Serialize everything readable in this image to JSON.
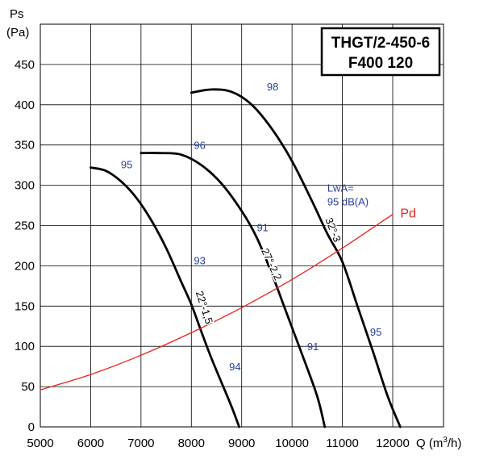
{
  "chart_data": {
    "type": "line",
    "title_lines": [
      "THGT/2-450-6",
      "F400 120"
    ],
    "ylabel_lines": [
      "Ps",
      "(Pa)"
    ],
    "xlabel": "Q (m³/h)",
    "xlim": [
      5000,
      12000
    ],
    "ylim": [
      0,
      500
    ],
    "x_ticks": [
      "5000",
      "6000",
      "7000",
      "8000",
      "9000",
      "10000",
      "11000",
      "12000"
    ],
    "y_ticks": [
      "0",
      "50",
      "100",
      "150",
      "200",
      "250",
      "300",
      "350",
      "400",
      "450"
    ],
    "grid": true,
    "colors": {
      "curve": "#000000",
      "pd": "#e8231d",
      "annotation": "#2a3f9a"
    },
    "series": [
      {
        "label": "22°-1,5",
        "points": [
          [
            6000,
            322
          ],
          [
            6300,
            318
          ],
          [
            6600,
            305
          ],
          [
            6900,
            285
          ],
          [
            7200,
            257
          ],
          [
            7500,
            222
          ],
          [
            7800,
            180
          ],
          [
            8000,
            152
          ],
          [
            8200,
            118
          ],
          [
            8400,
            85
          ],
          [
            8600,
            55
          ],
          [
            8800,
            25
          ],
          [
            8950,
            0
          ]
        ]
      },
      {
        "label": "27°-2,2",
        "points": [
          [
            7000,
            340
          ],
          [
            7400,
            340
          ],
          [
            7800,
            338
          ],
          [
            8200,
            325
          ],
          [
            8600,
            302
          ],
          [
            9000,
            268
          ],
          [
            9300,
            235
          ],
          [
            9600,
            190
          ],
          [
            9900,
            140
          ],
          [
            10200,
            90
          ],
          [
            10500,
            38
          ],
          [
            10650,
            0
          ]
        ]
      },
      {
        "label": "32°-3",
        "points": [
          [
            8000,
            415
          ],
          [
            8400,
            419
          ],
          [
            8800,
            416
          ],
          [
            9200,
            400
          ],
          [
            9600,
            370
          ],
          [
            10000,
            330
          ],
          [
            10400,
            280
          ],
          [
            10700,
            240
          ],
          [
            11000,
            205
          ],
          [
            11300,
            150
          ],
          [
            11600,
            95
          ],
          [
            11900,
            38
          ],
          [
            12150,
            0
          ]
        ]
      },
      {
        "label": "Pd",
        "points": [
          [
            5000,
            46
          ],
          [
            6000,
            65
          ],
          [
            7000,
            89
          ],
          [
            8000,
            117
          ],
          [
            9000,
            148
          ],
          [
            10000,
            183
          ],
          [
            11000,
            222
          ],
          [
            12000,
            264
          ]
        ]
      }
    ],
    "annotations": [
      {
        "text": "95",
        "x": 6600,
        "y": 321
      },
      {
        "text": "93",
        "x": 8050,
        "y": 202
      },
      {
        "text": "94",
        "x": 8750,
        "y": 70
      },
      {
        "text": "96",
        "x": 8050,
        "y": 345
      },
      {
        "text": "91",
        "x": 9300,
        "y": 243
      },
      {
        "text": "91",
        "x": 10300,
        "y": 95
      },
      {
        "text": "98",
        "x": 9500,
        "y": 418
      },
      {
        "text": "95",
        "x": 11550,
        "y": 113
      },
      {
        "text": "LwA=",
        "x": 10700,
        "y": 292
      },
      {
        "text": "95 dB(A)",
        "x": 10700,
        "y": 275
      },
      {
        "text": "Pd",
        "x": 12150,
        "y": 260
      }
    ],
    "curve_labels": [
      {
        "text": "22°-1,5",
        "x": 8190,
        "y": 147
      },
      {
        "text": "27°-2,2",
        "x": 9530,
        "y": 200
      },
      {
        "text": "32°-3",
        "x": 10750,
        "y": 243
      }
    ]
  }
}
